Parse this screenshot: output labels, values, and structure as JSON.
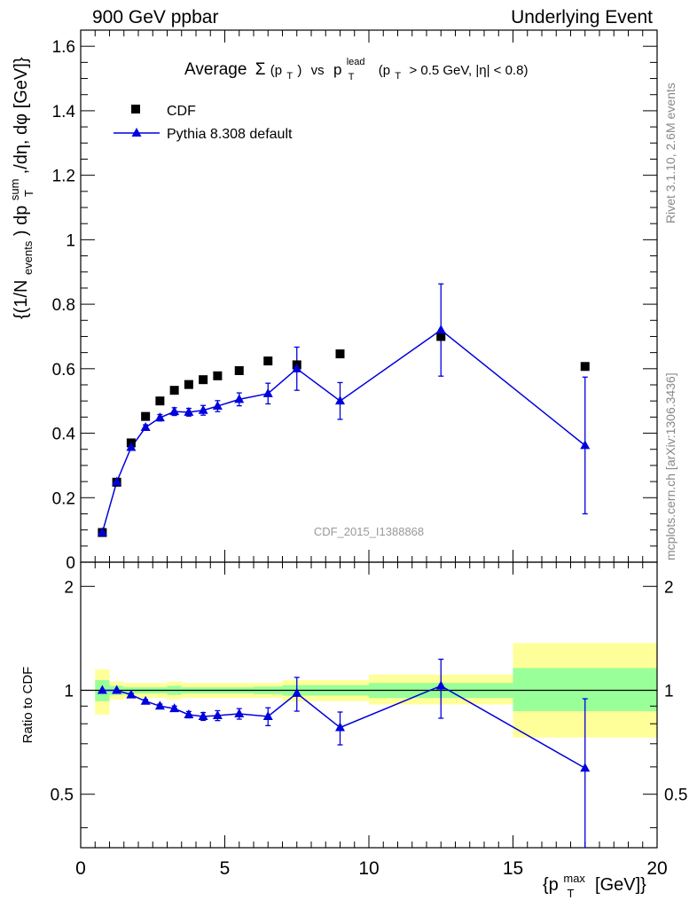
{
  "header": {
    "left": "900 GeV ppbar",
    "right": "Underlying Event"
  },
  "side_text": {
    "top": "Rivet 3.1.10,  2.6M events",
    "bottom": "mcplots.cern.ch [arXiv:1306.3436]"
  },
  "watermark": "CDF_2015_I1388868",
  "title_parts": {
    "average": "Average",
    "sigma": "Σ",
    "pt": "(p",
    "pt_sub": "T",
    "pt_close": ")",
    "vs": "vs",
    "p": "p",
    "p_sup": "lead",
    "p_sub": "T",
    "cut_open": "(p",
    "cut_sub": "T",
    "cut_rest": "> 0.5 GeV, |η| < 0.8)"
  },
  "ylabel_parts": {
    "a": "{(1/N",
    "a_sub": "events",
    "b": ") dp",
    "b_sup": "sum",
    "b_sub": "T",
    "c": ",/dη, dφ [GeV]}"
  },
  "xlabel_parts": {
    "a": "{p",
    "a_sup": "max",
    "a_sub": "T",
    "b": "[GeV]}"
  },
  "ratio_ylabel": "Ratio to CDF",
  "colors": {
    "mc": "#0000dd",
    "data": "#000000",
    "band_inner": "#99ff99",
    "band_outer": "#ffff99"
  },
  "chart_data": [
    {
      "type": "scatter",
      "panel": "main",
      "xlim": [
        0,
        20
      ],
      "ylim": [
        0,
        1.65
      ],
      "yticks": [
        0,
        0.2,
        0.4,
        0.6,
        0.8,
        1,
        1.2,
        1.4,
        1.6
      ],
      "ytick_labels": [
        "0",
        "0.2",
        "0.4",
        "0.6",
        "0.8",
        "1",
        "1.2",
        "1.4",
        "1.6"
      ],
      "legend_position": "top-left",
      "series": [
        {
          "name": "CDF",
          "marker": "square",
          "x": [
            0.75,
            1.25,
            1.75,
            2.25,
            2.75,
            3.25,
            3.75,
            4.25,
            4.75,
            5.5,
            6.5,
            7.5,
            9.0,
            12.5,
            17.5
          ],
          "y": [
            0.092,
            0.248,
            0.37,
            0.452,
            0.5,
            0.533,
            0.551,
            0.566,
            0.578,
            0.594,
            0.624,
            0.612,
            0.646,
            0.7,
            0.607
          ]
        },
        {
          "name": "Pythia 8.308 default",
          "marker": "triangle",
          "x": [
            0.75,
            1.25,
            1.75,
            2.25,
            2.75,
            3.25,
            3.75,
            4.25,
            4.75,
            5.5,
            6.5,
            7.5,
            9.0,
            12.5,
            17.5
          ],
          "y": [
            0.092,
            0.249,
            0.356,
            0.418,
            0.448,
            0.467,
            0.465,
            0.471,
            0.484,
            0.505,
            0.523,
            0.6,
            0.5,
            0.72,
            0.362
          ],
          "err": [
            0,
            0,
            0.008,
            0.008,
            0.01,
            0.012,
            0.012,
            0.015,
            0.017,
            0.02,
            0.032,
            0.067,
            0.057,
            0.143,
            0.212
          ]
        }
      ]
    },
    {
      "type": "line",
      "panel": "ratio",
      "xlim": [
        0,
        20
      ],
      "ylim": [
        0.35,
        2.35
      ],
      "yscale": "log",
      "yticks": [
        0.5,
        1,
        2
      ],
      "ytick_labels": [
        "0.5",
        "1",
        "2"
      ],
      "xticks": [
        0,
        5,
        10,
        15,
        20
      ],
      "xtick_labels": [
        "0",
        "5",
        "10",
        "15",
        "20"
      ],
      "bands": [
        {
          "x0": 0.5,
          "x1": 1.0,
          "inner": [
            0.93,
            1.07
          ],
          "outer": [
            0.85,
            1.15
          ]
        },
        {
          "x0": 1.0,
          "x1": 1.5,
          "inner": [
            0.97,
            1.03
          ],
          "outer": [
            0.94,
            1.06
          ]
        },
        {
          "x0": 1.5,
          "x1": 3.0,
          "inner": [
            0.98,
            1.02
          ],
          "outer": [
            0.95,
            1.05
          ]
        },
        {
          "x0": 3.0,
          "x1": 3.5,
          "inner": [
            0.97,
            1.03
          ],
          "outer": [
            0.94,
            1.06
          ]
        },
        {
          "x0": 3.5,
          "x1": 6.0,
          "inner": [
            0.98,
            1.02
          ],
          "outer": [
            0.95,
            1.05
          ]
        },
        {
          "x0": 6.0,
          "x1": 7.0,
          "inner": [
            0.975,
            1.025
          ],
          "outer": [
            0.95,
            1.05
          ]
        },
        {
          "x0": 7.0,
          "x1": 10.0,
          "inner": [
            0.965,
            1.035
          ],
          "outer": [
            0.93,
            1.07
          ]
        },
        {
          "x0": 10.0,
          "x1": 15.0,
          "inner": [
            0.95,
            1.05
          ],
          "outer": [
            0.91,
            1.11
          ]
        },
        {
          "x0": 15.0,
          "x1": 20.0,
          "inner": [
            0.87,
            1.16
          ],
          "outer": [
            0.73,
            1.37
          ]
        }
      ],
      "series": [
        {
          "name": "Pythia 8.308 default",
          "x": [
            0.75,
            1.25,
            1.75,
            2.25,
            2.75,
            3.25,
            3.75,
            4.25,
            4.75,
            5.5,
            6.5,
            7.5,
            9.0,
            12.5,
            17.5
          ],
          "y": [
            1.0,
            1.0,
            0.97,
            0.93,
            0.9,
            0.885,
            0.85,
            0.84,
            0.845,
            0.855,
            0.84,
            0.98,
            0.78,
            1.03,
            0.595
          ],
          "err": [
            0,
            0,
            0.01,
            0.01,
            0.012,
            0.015,
            0.018,
            0.022,
            0.028,
            0.03,
            0.05,
            0.11,
            0.085,
            0.2,
            0.35
          ]
        }
      ]
    }
  ]
}
